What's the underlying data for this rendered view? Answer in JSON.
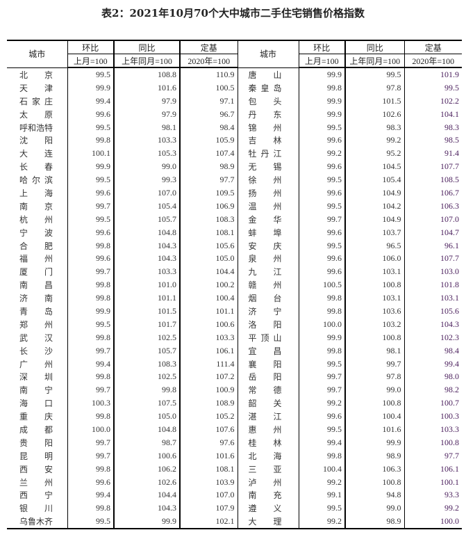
{
  "title": "表2：2021年10月70个大中城市二手住宅销售价格指数",
  "header": {
    "city": "城市",
    "mom": "环比",
    "yoy": "同比",
    "base": "定基",
    "mom_sub": "上月=100",
    "yoy_sub": "上年同月=100",
    "base_sub": "2020年=100"
  },
  "left_rows": [
    [
      "北京",
      "99.5",
      "108.8",
      "110.9"
    ],
    [
      "天津",
      "99.9",
      "101.6",
      "100.5"
    ],
    [
      "石家庄",
      "99.4",
      "97.9",
      "97.1"
    ],
    [
      "太原",
      "99.6",
      "97.9",
      "96.7"
    ],
    [
      "呼和浩特",
      "99.5",
      "98.1",
      "98.4"
    ],
    [
      "沈阳",
      "99.8",
      "103.3",
      "105.9"
    ],
    [
      "大连",
      "100.1",
      "105.3",
      "107.4"
    ],
    [
      "长春",
      "99.9",
      "99.0",
      "98.9"
    ],
    [
      "哈尔滨",
      "99.5",
      "99.3",
      "97.7"
    ],
    [
      "上海",
      "99.6",
      "107.0",
      "109.5"
    ],
    [
      "南京",
      "99.7",
      "105.4",
      "106.9"
    ],
    [
      "杭州",
      "99.5",
      "105.7",
      "108.3"
    ],
    [
      "宁波",
      "99.6",
      "104.8",
      "108.1"
    ],
    [
      "合肥",
      "99.8",
      "104.3",
      "105.6"
    ],
    [
      "福州",
      "99.6",
      "104.3",
      "105.0"
    ],
    [
      "厦门",
      "99.7",
      "103.3",
      "104.4"
    ],
    [
      "南昌",
      "99.8",
      "101.0",
      "100.2"
    ],
    [
      "济南",
      "99.8",
      "101.1",
      "100.4"
    ],
    [
      "青岛",
      "99.9",
      "101.5",
      "101.1"
    ],
    [
      "郑州",
      "99.5",
      "101.7",
      "100.6"
    ],
    [
      "武汉",
      "99.8",
      "102.5",
      "103.3"
    ],
    [
      "长沙",
      "99.7",
      "105.7",
      "106.1"
    ],
    [
      "广州",
      "99.4",
      "108.3",
      "111.4"
    ],
    [
      "深圳",
      "99.8",
      "102.5",
      "107.2"
    ],
    [
      "南宁",
      "99.7",
      "99.8",
      "100.9"
    ],
    [
      "海口",
      "100.3",
      "107.5",
      "108.9"
    ],
    [
      "重庆",
      "99.8",
      "105.0",
      "105.2"
    ],
    [
      "成都",
      "100.0",
      "104.8",
      "107.6"
    ],
    [
      "贵阳",
      "99.7",
      "98.7",
      "97.6"
    ],
    [
      "昆明",
      "99.7",
      "100.6",
      "101.6"
    ],
    [
      "西安",
      "99.8",
      "106.2",
      "108.1"
    ],
    [
      "兰州",
      "99.6",
      "102.6",
      "103.9"
    ],
    [
      "西宁",
      "99.4",
      "104.4",
      "107.0"
    ],
    [
      "银川",
      "99.8",
      "104.3",
      "107.9"
    ],
    [
      "乌鲁木齐",
      "99.5",
      "99.9",
      "102.1"
    ]
  ],
  "right_rows": [
    [
      "唐山",
      "99.9",
      "99.5",
      "101.9"
    ],
    [
      "秦皇岛",
      "99.8",
      "97.8",
      "99.5"
    ],
    [
      "包头",
      "99.9",
      "101.5",
      "102.2"
    ],
    [
      "丹东",
      "99.9",
      "102.6",
      "104.1"
    ],
    [
      "锦州",
      "99.5",
      "98.3",
      "98.3"
    ],
    [
      "吉林",
      "99.6",
      "99.2",
      "98.5"
    ],
    [
      "牡丹江",
      "99.2",
      "95.2",
      "91.4"
    ],
    [
      "无锡",
      "99.6",
      "104.5",
      "107.7"
    ],
    [
      "徐州",
      "99.5",
      "105.4",
      "108.5"
    ],
    [
      "扬州",
      "99.6",
      "104.9",
      "106.7"
    ],
    [
      "温州",
      "99.5",
      "104.2",
      "106.3"
    ],
    [
      "金华",
      "99.7",
      "104.9",
      "107.0"
    ],
    [
      "蚌埠",
      "99.6",
      "103.7",
      "104.7"
    ],
    [
      "安庆",
      "99.5",
      "96.5",
      "96.1"
    ],
    [
      "泉州",
      "99.6",
      "106.0",
      "107.7"
    ],
    [
      "九江",
      "99.6",
      "103.1",
      "103.0"
    ],
    [
      "赣州",
      "100.5",
      "100.8",
      "101.8"
    ],
    [
      "烟台",
      "99.8",
      "103.1",
      "103.1"
    ],
    [
      "济宁",
      "99.8",
      "103.6",
      "105.6"
    ],
    [
      "洛阳",
      "100.0",
      "103.2",
      "104.3"
    ],
    [
      "平顶山",
      "99.9",
      "100.8",
      "102.3"
    ],
    [
      "宜昌",
      "99.8",
      "98.1",
      "98.4"
    ],
    [
      "襄阳",
      "99.5",
      "99.7",
      "99.4"
    ],
    [
      "岳阳",
      "99.7",
      "97.8",
      "98.0"
    ],
    [
      "常德",
      "99.7",
      "99.0",
      "98.2"
    ],
    [
      "韶关",
      "99.2",
      "100.8",
      "100.7"
    ],
    [
      "湛江",
      "99.6",
      "100.4",
      "100.3"
    ],
    [
      "惠州",
      "99.5",
      "101.6",
      "103.3"
    ],
    [
      "桂林",
      "99.4",
      "99.9",
      "100.8"
    ],
    [
      "北海",
      "99.8",
      "98.9",
      "97.7"
    ],
    [
      "三亚",
      "100.4",
      "106.3",
      "106.1"
    ],
    [
      "泸州",
      "99.2",
      "100.8",
      "100.1"
    ],
    [
      "南充",
      "99.1",
      "94.8",
      "93.3"
    ],
    [
      "遵义",
      "99.5",
      "99.0",
      "99.2"
    ],
    [
      "大理",
      "99.2",
      "98.9",
      "100.0"
    ]
  ]
}
